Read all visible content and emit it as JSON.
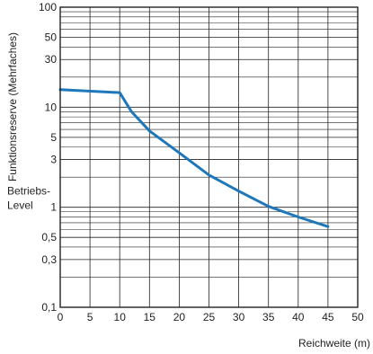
{
  "chart_data": {
    "type": "line",
    "title": "",
    "xlabel": "Reichweite (m)",
    "ylabel": "Funktionsreserve (Mehrfaches)",
    "xlim": [
      0,
      50
    ],
    "ylim": [
      0.1,
      100
    ],
    "yscale": "log",
    "grid": true,
    "legend": "none",
    "x_ticks": [
      0,
      5,
      10,
      15,
      20,
      25,
      30,
      35,
      40,
      45,
      50
    ],
    "x_tick_labels": [
      "0",
      "5",
      "10",
      "15",
      "20",
      "25",
      "30",
      "35",
      "40",
      "45",
      "50"
    ],
    "y_ticks": [
      0.1,
      0.3,
      0.5,
      1,
      3,
      5,
      10,
      30,
      50,
      100
    ],
    "y_tick_labels": [
      "0,1",
      "0,3",
      "0,5",
      "1",
      "3",
      "5",
      "10",
      "30",
      "50",
      "100"
    ],
    "y_minor_grid": [
      0.2,
      0.4,
      0.6,
      0.7,
      0.8,
      0.9,
      2,
      4,
      6,
      7,
      8,
      9,
      20,
      40,
      60,
      70,
      80,
      90
    ],
    "annotation_lines": [
      "Betriebs-",
      "Level"
    ],
    "annotation_at_y": 1,
    "series": [
      {
        "x": [
          0,
          10,
          12,
          15,
          20,
          25,
          30,
          35,
          40,
          45
        ],
        "values": [
          15,
          14,
          9,
          5.8,
          3.5,
          2.1,
          1.45,
          1.02,
          0.8,
          0.64
        ]
      }
    ],
    "colors": {
      "line": "#1f77bb",
      "grid": "#222222",
      "frame": "#222222"
    }
  }
}
